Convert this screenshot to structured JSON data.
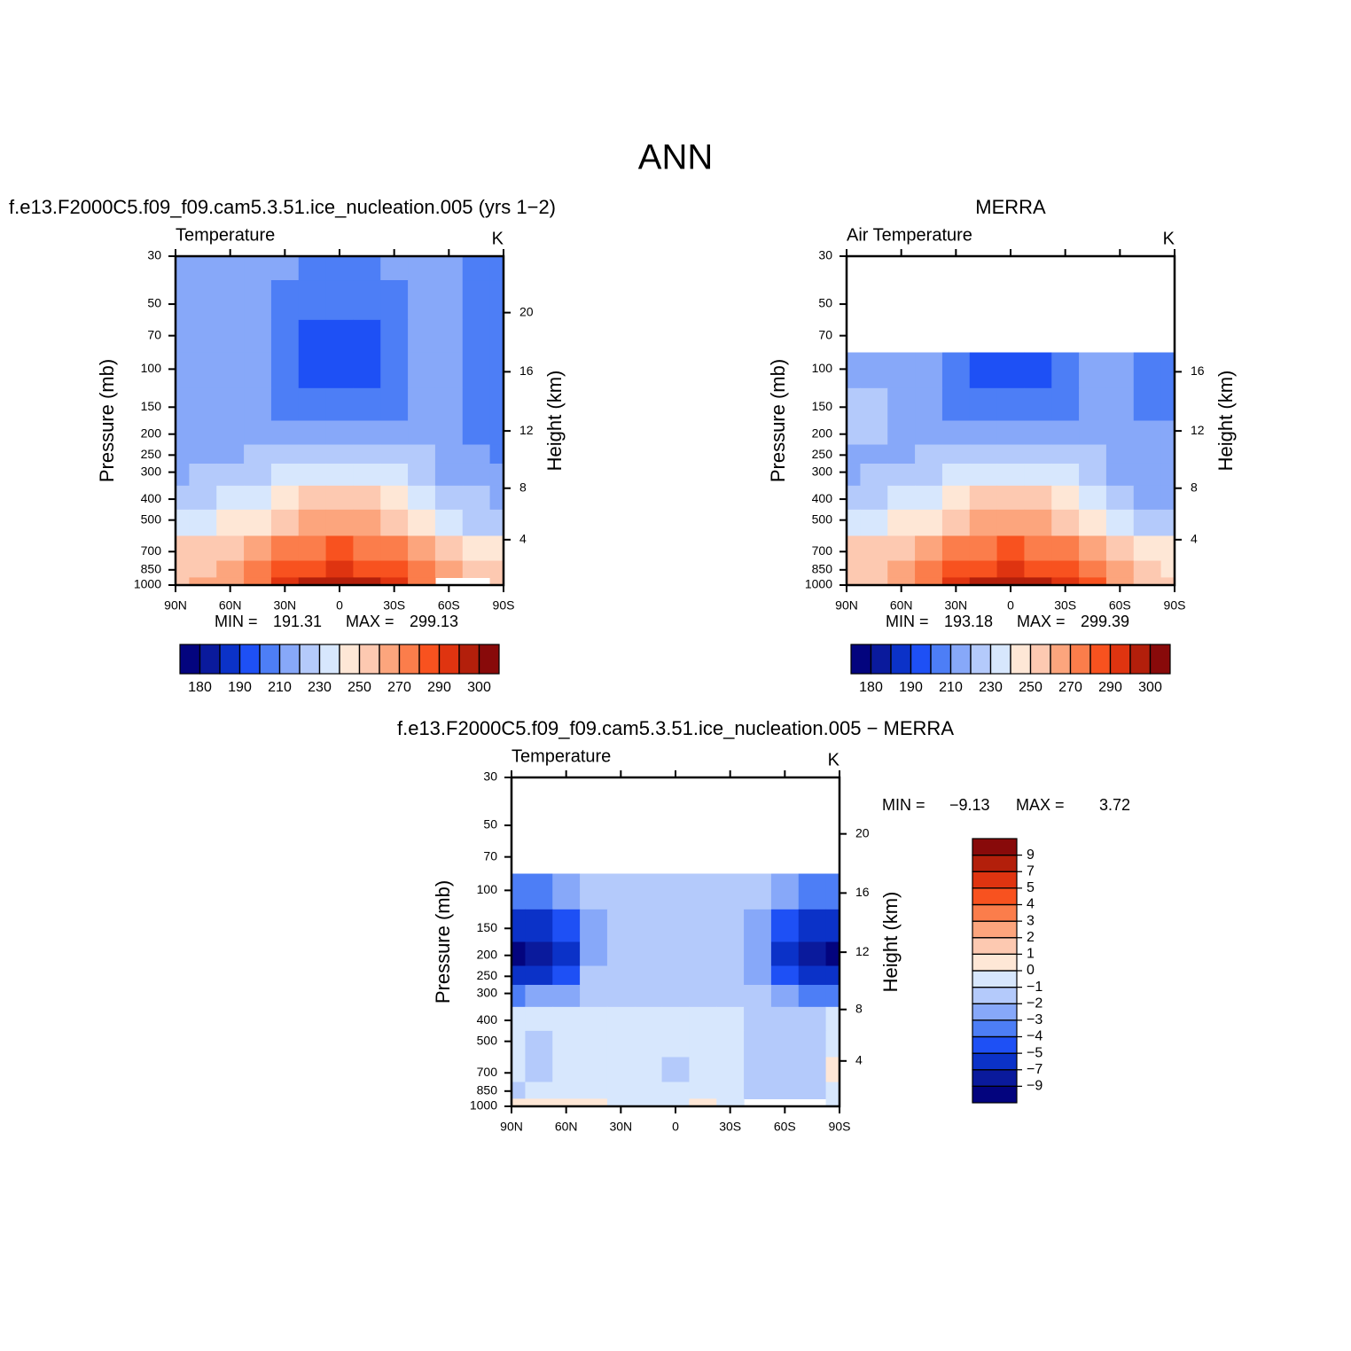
{
  "suptitle": "ANN",
  "chart_data": [
    {
      "type": "contour",
      "title": "f.e13.F2000C5.f09_f09.cam5.3.51.ice_nucleation.005 (yrs 1−2)",
      "left_string": "Temperature",
      "right_string": "K",
      "ylabel": "Pressure (mb)",
      "y2label": "Height (km)",
      "x": [
        90,
        75,
        60,
        45,
        30,
        15,
        0,
        -15,
        -30,
        -45,
        -60,
        -75,
        -90
      ],
      "y": [
        30,
        50,
        70,
        100,
        150,
        200,
        250,
        300,
        400,
        500,
        700,
        850,
        1000
      ],
      "z": [
        [
          215,
          215,
          215,
          214,
          211,
          207,
          206,
          207,
          211,
          214,
          214,
          205,
          204
        ],
        [
          215,
          215,
          215,
          213,
          205,
          203,
          203,
          203,
          205,
          213,
          214,
          205,
          204
        ],
        [
          215,
          215,
          215,
          212,
          203,
          197,
          196,
          197,
          203,
          212,
          214,
          206,
          205
        ],
        [
          215,
          215,
          215,
          212,
          202,
          195,
          194,
          195,
          202,
          212,
          215,
          206,
          205
        ],
        [
          216,
          216,
          216,
          214,
          205,
          202,
          201,
          202,
          205,
          214,
          215,
          207,
          205
        ],
        [
          217,
          217,
          217,
          217,
          215,
          213,
          212,
          213,
          215,
          216,
          215,
          208,
          206
        ],
        [
          218,
          218,
          219,
          221,
          224,
          226,
          227,
          226,
          224,
          220,
          215,
          210,
          208
        ],
        [
          219,
          220,
          221,
          225,
          232,
          236,
          237,
          236,
          232,
          225,
          218,
          213,
          210
        ],
        [
          226,
          228,
          230,
          235,
          245,
          252,
          254,
          252,
          245,
          236,
          227,
          220,
          218
        ],
        [
          236,
          238,
          240,
          245,
          255,
          263,
          266,
          263,
          255,
          245,
          235,
          229,
          226
        ],
        [
          250,
          252,
          255,
          262,
          272,
          279,
          282,
          279,
          272,
          262,
          252,
          245,
          242
        ],
        [
          256,
          258,
          263,
          272,
          283,
          289,
          291,
          289,
          283,
          271,
          262,
          252,
          250
        ],
        [
          258,
          260,
          266,
          278,
          291,
          296,
          298,
          296,
          291,
          279,
          null,
          null,
          255
        ]
      ],
      "xlim": [
        90,
        -90
      ],
      "xticks": [
        {
          "value": 90,
          "label": "90N"
        },
        {
          "value": 60,
          "label": "60N"
        },
        {
          "value": 30,
          "label": "30N"
        },
        0,
        {
          "value": -30,
          "label": "30S"
        },
        {
          "value": -60,
          "label": "60S"
        },
        {
          "value": -90,
          "label": "90S"
        }
      ],
      "ylim": [
        1000,
        30
      ],
      "log_y": true,
      "yticks": [
        30,
        50,
        70,
        100,
        150,
        200,
        250,
        300,
        400,
        500,
        700,
        850,
        1000
      ],
      "y2ticks": [
        4,
        8,
        12,
        16,
        20
      ],
      "stats": [
        {
          "label": "MIN =",
          "value": 191.31
        },
        {
          "label": "MAX =",
          "value": 299.13
        }
      ],
      "colorbar_orientation": "horizontal",
      "label_stride": 2,
      "levels": [
        180,
        185,
        190,
        200,
        210,
        220,
        230,
        240,
        250,
        260,
        270,
        280,
        290,
        295,
        300
      ],
      "colors": [
        "#03047e",
        "#0a1a9c",
        "#0b32c8",
        "#1e50f5",
        "#4d7ef6",
        "#87a8f9",
        "#b4cafb",
        "#d7e7fd",
        "#fee7d6",
        "#fdc9b1",
        "#fca57d",
        "#fb7d4b",
        "#f8521f",
        "#df3410",
        "#b31f0b",
        "#880a0a"
      ]
    },
    {
      "type": "contour",
      "title": "MERRA",
      "left_string": "Air Temperature",
      "right_string": "K",
      "ylabel": "Pressure (mb)",
      "y2label": "Height (km)",
      "x": [
        90,
        75,
        60,
        45,
        30,
        15,
        0,
        -15,
        -30,
        -45,
        -60,
        -75,
        -90
      ],
      "y": [
        30,
        50,
        70,
        100,
        150,
        200,
        250,
        300,
        400,
        500,
        700,
        850,
        1000
      ],
      "z": [
        [
          null,
          null,
          null,
          null,
          null,
          null,
          null,
          null,
          null,
          null,
          null,
          null,
          null
        ],
        [
          null,
          null,
          null,
          null,
          null,
          null,
          null,
          null,
          null,
          null,
          null,
          null,
          null
        ],
        [
          null,
          null,
          null,
          null,
          null,
          null,
          null,
          null,
          null,
          null,
          null,
          null,
          null
        ],
        [
          213,
          213,
          214,
          214,
          205,
          195,
          193,
          195,
          205,
          214,
          212,
          205,
          203
        ],
        [
          222,
          222,
          218,
          215,
          206,
          203,
          203,
          203,
          206,
          215,
          213,
          208,
          206
        ],
        [
          222,
          221,
          217,
          216,
          215,
          214,
          214,
          214,
          215,
          216,
          214,
          212,
          210
        ],
        [
          218,
          218,
          218,
          220,
          223,
          225,
          226,
          225,
          223,
          220,
          216,
          213,
          212
        ],
        [
          219,
          220,
          221,
          225,
          231,
          235,
          236,
          235,
          231,
          225,
          218,
          214,
          213
        ],
        [
          226,
          227,
          230,
          236,
          246,
          252,
          254,
          252,
          246,
          237,
          226,
          219,
          217
        ],
        [
          236,
          237,
          240,
          246,
          256,
          263,
          266,
          263,
          256,
          246,
          234,
          229,
          226
        ],
        [
          250,
          251,
          255,
          263,
          273,
          279,
          282,
          279,
          273,
          263,
          250,
          244,
          241
        ],
        [
          255,
          257,
          263,
          272,
          283,
          289,
          291,
          289,
          283,
          272,
          260,
          251,
          248
        ],
        [
          257,
          259,
          266,
          278,
          291,
          296,
          298,
          296,
          291,
          280,
          268,
          258,
          250
        ]
      ],
      "xlim": [
        90,
        -90
      ],
      "xticks": [
        {
          "value": 90,
          "label": "90N"
        },
        {
          "value": 60,
          "label": "60N"
        },
        {
          "value": 30,
          "label": "30N"
        },
        0,
        {
          "value": -30,
          "label": "30S"
        },
        {
          "value": -60,
          "label": "60S"
        },
        {
          "value": -90,
          "label": "90S"
        }
      ],
      "ylim": [
        1000,
        30
      ],
      "log_y": true,
      "yticks": [
        30,
        50,
        70,
        100,
        150,
        200,
        250,
        300,
        400,
        500,
        700,
        850,
        1000
      ],
      "y2ticks": [
        4,
        8,
        12,
        16
      ],
      "stats": [
        {
          "label": "MIN =",
          "value": 193.18
        },
        {
          "label": "MAX =",
          "value": 299.39
        }
      ],
      "colorbar_orientation": "horizontal",
      "label_stride": 2,
      "levels": [
        180,
        185,
        190,
        200,
        210,
        220,
        230,
        240,
        250,
        260,
        270,
        280,
        290,
        295,
        300
      ],
      "colors": [
        "#03047e",
        "#0a1a9c",
        "#0b32c8",
        "#1e50f5",
        "#4d7ef6",
        "#87a8f9",
        "#b4cafb",
        "#d7e7fd",
        "#fee7d6",
        "#fdc9b1",
        "#fca57d",
        "#fb7d4b",
        "#f8521f",
        "#df3410",
        "#b31f0b",
        "#880a0a"
      ]
    },
    {
      "type": "contour",
      "title": "f.e13.F2000C5.f09_f09.cam5.3.51.ice_nucleation.005 − MERRA",
      "left_string": "Temperature",
      "right_string": "K",
      "ylabel": "Pressure (mb)",
      "y2label": "Height (km)",
      "x": [
        90,
        75,
        60,
        45,
        30,
        15,
        0,
        -15,
        -30,
        -45,
        -60,
        -75,
        -90
      ],
      "y": [
        30,
        50,
        70,
        100,
        150,
        200,
        250,
        300,
        400,
        500,
        700,
        850,
        1000
      ],
      "z": [
        [
          null,
          null,
          null,
          null,
          null,
          null,
          null,
          null,
          null,
          null,
          null,
          null,
          null
        ],
        [
          null,
          null,
          null,
          null,
          null,
          null,
          null,
          null,
          null,
          null,
          null,
          null,
          null
        ],
        [
          null,
          null,
          null,
          null,
          null,
          null,
          null,
          null,
          null,
          null,
          null,
          null,
          null
        ],
        [
          -4,
          -4,
          -3,
          -2,
          -1.5,
          -1.5,
          -1.5,
          -1.5,
          -1.5,
          -2,
          -3,
          -4,
          -4
        ],
        [
          -6,
          -6,
          -4.5,
          -2.5,
          -1.5,
          -1.5,
          -1.5,
          -1.5,
          -1.5,
          -2.5,
          -5,
          -6,
          -6
        ],
        [
          -9.1,
          -8,
          -6,
          -2.5,
          -1.5,
          -1.5,
          -1.5,
          -1.5,
          -1.5,
          -3,
          -6,
          -8,
          -9.1
        ],
        [
          -6,
          -6,
          -4.5,
          -2,
          -1.5,
          -1.5,
          -1.5,
          -1.5,
          -1.5,
          -2.5,
          -5,
          -6,
          -6
        ],
        [
          -3.5,
          -3,
          -2.5,
          -1.5,
          -1.5,
          -1.5,
          -1.5,
          -1.5,
          -1.5,
          -2,
          -3,
          -3.5,
          -3.5
        ],
        [
          -0.5,
          -0.5,
          -0.5,
          -0.5,
          -0.5,
          -0.5,
          -0.5,
          -0.5,
          -0.8,
          -1.3,
          -1.3,
          -1.3,
          -1
        ],
        [
          -0.5,
          -1.2,
          -0.5,
          -0.5,
          -0.5,
          -0.5,
          -0.5,
          -0.5,
          -0.5,
          -1.3,
          -1.3,
          -1.3,
          -0.8
        ],
        [
          -0.5,
          -1.2,
          -0.5,
          -0.5,
          -0.5,
          -0.5,
          -1.2,
          -0.5,
          -0.5,
          -1.3,
          -1.5,
          -1.2,
          0.5
        ],
        [
          -1.2,
          -0.5,
          -0.5,
          -0.5,
          -0.5,
          -0.5,
          -0.5,
          -0.5,
          -0.5,
          -1.5,
          -1.5,
          -1.5,
          -0.5
        ],
        [
          0.5,
          0.5,
          0.5,
          0.5,
          -0.5,
          -0.5,
          -0.5,
          0.5,
          -0.5,
          null,
          null,
          null,
          -0.5
        ]
      ],
      "xlim": [
        90,
        -90
      ],
      "xticks": [
        {
          "value": 90,
          "label": "90N"
        },
        {
          "value": 60,
          "label": "60N"
        },
        {
          "value": 30,
          "label": "30N"
        },
        0,
        {
          "value": -30,
          "label": "30S"
        },
        {
          "value": -60,
          "label": "60S"
        },
        {
          "value": -90,
          "label": "90S"
        }
      ],
      "ylim": [
        1000,
        30
      ],
      "log_y": true,
      "yticks": [
        30,
        50,
        70,
        100,
        150,
        200,
        250,
        300,
        400,
        500,
        700,
        850,
        1000
      ],
      "y2ticks": [
        4,
        8,
        12,
        16,
        20
      ],
      "stats": [
        {
          "label": "MIN =",
          "value": -9.13,
          "value_label": "−9.13"
        },
        {
          "label": "MAX =",
          "value": 3.72
        }
      ],
      "colorbar_orientation": "vertical",
      "label_stride": 1,
      "levels": [
        {
          "value": -9,
          "label": "−9"
        },
        {
          "value": -7,
          "label": "−7"
        },
        {
          "value": -5,
          "label": "−5"
        },
        {
          "value": -4,
          "label": "−4"
        },
        {
          "value": -3,
          "label": "−3"
        },
        {
          "value": -2,
          "label": "−2"
        },
        {
          "value": -1,
          "label": "−1"
        },
        0,
        1,
        2,
        3,
        4,
        5,
        7,
        9
      ],
      "colors": [
        "#03047e",
        "#0a1a9c",
        "#0b32c8",
        "#1e50f5",
        "#4d7ef6",
        "#87a8f9",
        "#b4cafb",
        "#d7e7fd",
        "#fee7d6",
        "#fdc9b1",
        "#fca57d",
        "#fb7d4b",
        "#f8521f",
        "#df3410",
        "#b31f0b",
        "#880a0a"
      ]
    }
  ]
}
